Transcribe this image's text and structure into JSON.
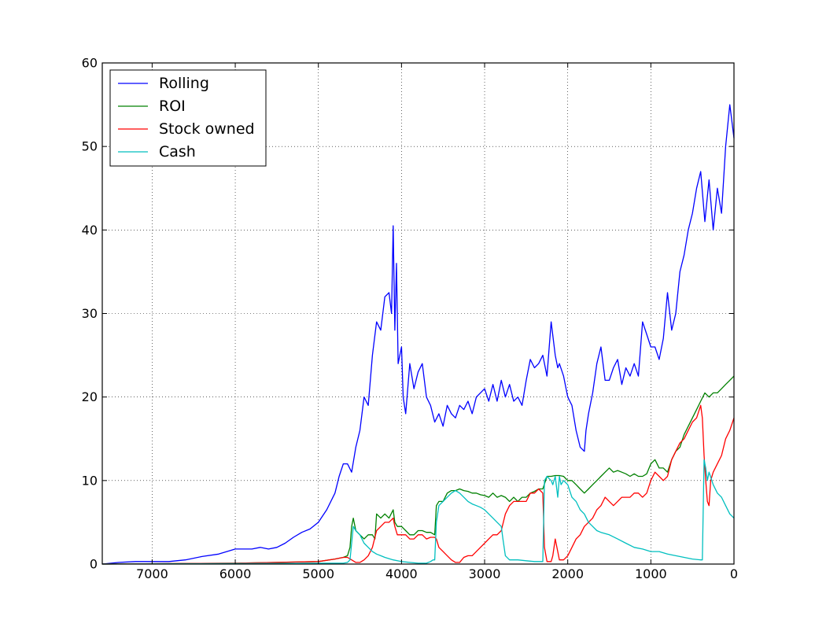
{
  "chart_data": {
    "type": "line",
    "title": "",
    "xlabel": "",
    "ylabel": "",
    "xlim": [
      7600,
      0
    ],
    "ylim": [
      0,
      60
    ],
    "x_reversed": true,
    "grid": true,
    "legend_position": "top-left",
    "xticks": [
      7000,
      6000,
      5000,
      4000,
      3000,
      2000,
      1000,
      0
    ],
    "yticks": [
      0,
      10,
      20,
      30,
      40,
      50,
      60
    ],
    "series": [
      {
        "name": "Rolling",
        "color": "#0000ff",
        "x": [
          7600,
          7400,
          7200,
          7000,
          6800,
          6600,
          6400,
          6200,
          6000,
          5900,
          5800,
          5700,
          5600,
          5500,
          5400,
          5300,
          5200,
          5100,
          5000,
          4900,
          4800,
          4750,
          4700,
          4650,
          4600,
          4550,
          4500,
          4450,
          4400,
          4350,
          4300,
          4250,
          4200,
          4150,
          4120,
          4100,
          4080,
          4060,
          4040,
          4000,
          3980,
          3950,
          3900,
          3850,
          3800,
          3750,
          3700,
          3650,
          3600,
          3550,
          3500,
          3450,
          3400,
          3350,
          3300,
          3250,
          3200,
          3150,
          3100,
          3050,
          3000,
          2950,
          2900,
          2850,
          2800,
          2750,
          2700,
          2650,
          2600,
          2550,
          2500,
          2450,
          2400,
          2350,
          2300,
          2250,
          2200,
          2150,
          2120,
          2100,
          2050,
          2000,
          1950,
          1900,
          1850,
          1800,
          1780,
          1750,
          1700,
          1650,
          1600,
          1550,
          1500,
          1450,
          1400,
          1350,
          1300,
          1250,
          1200,
          1150,
          1100,
          1050,
          1000,
          950,
          900,
          850,
          800,
          750,
          700,
          650,
          600,
          550,
          500,
          450,
          400,
          350,
          300,
          250,
          200,
          150,
          100,
          50,
          0
        ],
        "y": [
          0,
          0.2,
          0.3,
          0.3,
          0.3,
          0.5,
          0.9,
          1.2,
          1.8,
          1.8,
          1.8,
          2.0,
          1.8,
          2.0,
          2.5,
          3.2,
          3.8,
          4.2,
          5.0,
          6.5,
          8.5,
          10.5,
          12.0,
          12.0,
          11.0,
          14.0,
          16.0,
          20.0,
          19.0,
          25.0,
          29.0,
          28.0,
          32.0,
          32.5,
          30.0,
          40.5,
          28.0,
          36.0,
          24.0,
          26.0,
          20.0,
          18.0,
          24.0,
          21.0,
          23.0,
          24.0,
          20.0,
          19.0,
          17.0,
          18.0,
          16.5,
          19.0,
          18.0,
          17.5,
          19.0,
          18.5,
          19.5,
          18.0,
          20.0,
          20.5,
          21.0,
          19.5,
          21.5,
          19.5,
          22.0,
          20.0,
          21.5,
          19.5,
          20.0,
          19.0,
          22.0,
          24.5,
          23.5,
          24.0,
          25.0,
          22.5,
          29.0,
          25.0,
          23.5,
          24.0,
          22.5,
          20.0,
          19.0,
          16.0,
          14.0,
          13.5,
          16.0,
          18.0,
          20.5,
          24.0,
          26.0,
          22.0,
          22.0,
          23.5,
          24.5,
          21.5,
          23.5,
          22.5,
          24.0,
          22.5,
          29.0,
          27.5,
          26.0,
          26.0,
          24.5,
          27.0,
          32.5,
          28.0,
          30.0,
          35.0,
          37.0,
          40.0,
          42.0,
          45.0,
          47.0,
          41.0,
          46.0,
          40.0,
          45.0,
          42.0,
          50.0,
          55.0,
          51.0
        ]
      },
      {
        "name": "ROI",
        "color": "#008000",
        "x": [
          7600,
          6000,
          5500,
          5000,
          4800,
          4700,
          4650,
          4620,
          4600,
          4580,
          4550,
          4500,
          4450,
          4400,
          4350,
          4320,
          4300,
          4250,
          4200,
          4150,
          4100,
          4080,
          4050,
          4000,
          3950,
          3900,
          3850,
          3800,
          3750,
          3700,
          3650,
          3600,
          3580,
          3550,
          3500,
          3450,
          3400,
          3350,
          3300,
          3250,
          3200,
          3150,
          3100,
          3050,
          3000,
          2950,
          2900,
          2850,
          2800,
          2750,
          2700,
          2650,
          2600,
          2550,
          2500,
          2450,
          2400,
          2350,
          2300,
          2250,
          2200,
          2150,
          2100,
          2050,
          2000,
          1950,
          1900,
          1850,
          1800,
          1750,
          1700,
          1650,
          1600,
          1550,
          1500,
          1450,
          1400,
          1350,
          1300,
          1250,
          1200,
          1150,
          1100,
          1050,
          1000,
          950,
          900,
          850,
          800,
          750,
          700,
          650,
          600,
          550,
          500,
          450,
          400,
          350,
          300,
          250,
          200,
          150,
          100,
          50,
          0
        ],
        "y": [
          0,
          0.1,
          0.2,
          0.3,
          0.6,
          0.8,
          1.0,
          2.0,
          4.5,
          5.5,
          4.0,
          3.5,
          3.0,
          3.5,
          3.5,
          3.0,
          6.0,
          5.5,
          6.0,
          5.5,
          6.5,
          5.0,
          4.5,
          4.5,
          4.0,
          3.5,
          3.5,
          4.0,
          4.0,
          3.8,
          3.8,
          3.5,
          7.0,
          7.5,
          7.5,
          8.5,
          8.8,
          8.8,
          9.0,
          8.8,
          8.7,
          8.5,
          8.5,
          8.3,
          8.2,
          8.0,
          8.5,
          8.0,
          8.2,
          8.0,
          7.5,
          8.0,
          7.5,
          8.0,
          8.0,
          8.5,
          8.7,
          9.0,
          9.0,
          10.5,
          10.5,
          10.6,
          10.6,
          10.5,
          10.0,
          10.0,
          9.5,
          9.0,
          8.5,
          9.0,
          9.5,
          10.0,
          10.5,
          11.0,
          11.5,
          11.0,
          11.2,
          11.0,
          10.8,
          10.5,
          10.8,
          10.5,
          10.5,
          10.8,
          12.0,
          12.5,
          11.5,
          11.5,
          11.0,
          12.5,
          13.5,
          14.0,
          15.5,
          16.5,
          17.5,
          18.5,
          19.5,
          20.5,
          20.0,
          20.5,
          20.5,
          21.0,
          21.5,
          22.0,
          22.5
        ]
      },
      {
        "name": "Stock owned",
        "color": "#ff0000",
        "x": [
          7600,
          6000,
          5500,
          5000,
          4800,
          4700,
          4650,
          4600,
          4550,
          4500,
          4450,
          4400,
          4350,
          4300,
          4250,
          4200,
          4150,
          4100,
          4080,
          4050,
          4000,
          3950,
          3900,
          3850,
          3800,
          3750,
          3700,
          3650,
          3600,
          3580,
          3550,
          3500,
          3450,
          3400,
          3350,
          3300,
          3250,
          3200,
          3150,
          3100,
          3050,
          3000,
          2950,
          2900,
          2850,
          2800,
          2750,
          2700,
          2650,
          2600,
          2550,
          2500,
          2450,
          2400,
          2350,
          2300,
          2280,
          2250,
          2200,
          2180,
          2150,
          2120,
          2100,
          2050,
          2000,
          1950,
          1900,
          1850,
          1800,
          1750,
          1700,
          1650,
          1600,
          1550,
          1500,
          1450,
          1400,
          1350,
          1300,
          1250,
          1200,
          1150,
          1100,
          1050,
          1000,
          950,
          900,
          850,
          800,
          750,
          700,
          650,
          600,
          550,
          500,
          450,
          400,
          380,
          360,
          340,
          320,
          300,
          280,
          250,
          200,
          150,
          100,
          50,
          0
        ],
        "y": [
          0,
          0.1,
          0.2,
          0.3,
          0.6,
          0.8,
          0.8,
          0.5,
          0.2,
          0.2,
          0.5,
          1.0,
          2.0,
          4.0,
          4.5,
          5.0,
          5.0,
          5.5,
          4.5,
          3.5,
          3.5,
          3.5,
          3.0,
          3.0,
          3.5,
          3.5,
          3.0,
          3.2,
          3.2,
          3.0,
          2.0,
          1.5,
          1.0,
          0.5,
          0.2,
          0.2,
          0.8,
          1.0,
          1.0,
          1.5,
          2.0,
          2.5,
          3.0,
          3.5,
          3.5,
          4.0,
          6.0,
          7.0,
          7.5,
          7.5,
          7.5,
          7.5,
          8.5,
          8.5,
          9.0,
          8.5,
          2.0,
          0.3,
          0.3,
          1.0,
          3.0,
          1.5,
          0.5,
          0.5,
          1.0,
          2.0,
          3.0,
          3.5,
          4.5,
          5.0,
          5.5,
          6.5,
          7.0,
          8.0,
          7.5,
          7.0,
          7.5,
          8.0,
          8.0,
          8.0,
          8.5,
          8.5,
          8.0,
          8.5,
          10.0,
          11.0,
          10.5,
          10.0,
          10.5,
          12.5,
          13.5,
          14.5,
          15.0,
          16.0,
          17.0,
          17.5,
          19.0,
          17.5,
          13.0,
          10.0,
          7.5,
          7.0,
          10.0,
          11.0,
          12.0,
          13.0,
          15.0,
          16.0,
          17.5
        ]
      },
      {
        "name": "Cash",
        "color": "#00bfbf",
        "x": [
          7600,
          5000,
          4700,
          4650,
          4620,
          4600,
          4580,
          4550,
          4500,
          4450,
          4400,
          4350,
          4300,
          4250,
          4200,
          4100,
          4000,
          3900,
          3800,
          3700,
          3650,
          3620,
          3600,
          3580,
          3550,
          3500,
          3450,
          3400,
          3350,
          3300,
          3250,
          3200,
          3150,
          3100,
          3050,
          3000,
          2950,
          2900,
          2850,
          2800,
          2780,
          2750,
          2700,
          2650,
          2600,
          2500,
          2400,
          2300,
          2280,
          2250,
          2220,
          2200,
          2180,
          2150,
          2120,
          2100,
          2080,
          2050,
          2000,
          1950,
          1900,
          1850,
          1800,
          1750,
          1700,
          1650,
          1600,
          1500,
          1400,
          1300,
          1200,
          1100,
          1000,
          900,
          800,
          700,
          600,
          500,
          400,
          380,
          360,
          340,
          320,
          300,
          250,
          200,
          150,
          100,
          50,
          0
        ],
        "y": [
          0,
          0.1,
          0.1,
          0.2,
          0.5,
          2.5,
          4.5,
          4.0,
          3.5,
          2.5,
          2.0,
          1.5,
          1.2,
          1.0,
          0.8,
          0.5,
          0.3,
          0.2,
          0.1,
          0.1,
          0.3,
          0.5,
          0.5,
          5.0,
          7.0,
          7.5,
          8.0,
          8.5,
          8.8,
          8.5,
          8.0,
          7.5,
          7.2,
          7.0,
          6.8,
          6.5,
          6.0,
          5.5,
          5.0,
          4.5,
          3.0,
          1.0,
          0.5,
          0.5,
          0.5,
          0.4,
          0.3,
          0.3,
          10.0,
          10.5,
          10.2,
          10.0,
          9.5,
          10.5,
          8.0,
          10.5,
          9.5,
          10.0,
          9.5,
          8.0,
          7.5,
          6.5,
          6.0,
          5.0,
          4.5,
          4.0,
          3.8,
          3.5,
          3.0,
          2.5,
          2.0,
          1.8,
          1.5,
          1.5,
          1.2,
          1.0,
          0.8,
          0.6,
          0.5,
          0.5,
          12.5,
          11.5,
          10.0,
          11.0,
          9.5,
          8.5,
          8.0,
          7.0,
          6.0,
          5.5
        ]
      }
    ]
  }
}
